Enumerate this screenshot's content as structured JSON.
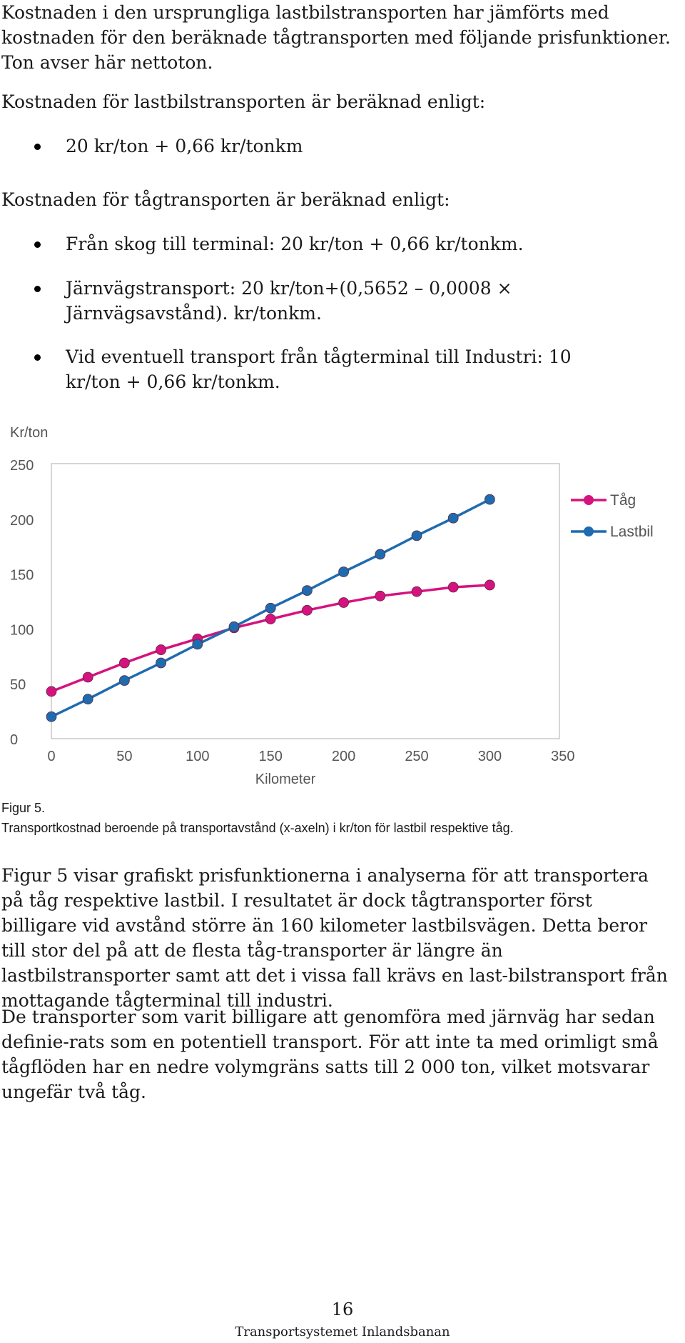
{
  "intro": "Kostnaden i den ursprungliga lastbilstransporten har jämförts med kostnaden för den beräknade tågtransporten med följande prisfunktioner. Ton avser här nettoton.",
  "truck_heading": "Kostnaden för lastbilstransporten är beräknad enligt:",
  "truck_items": [
    "20 kr/ton + 0,66 kr/tonkm"
  ],
  "train_heading": "Kostnaden för tågtransporten är beräknad enligt:",
  "train_items": [
    "Från skog till terminal: 20 kr/ton + 0,66 kr/tonkm.",
    "Järnvägstransport: 20 kr/ton+(0,5652 – 0,0008 × Järnvägsavstånd). kr/tonkm.",
    "Vid eventuell transport från tågterminal till Industri: 10 kr/ton + 0,66 kr/tonkm."
  ],
  "chart_data": {
    "type": "line",
    "ylabel": "Kr/ton",
    "xlabel": "Kilometer",
    "xlim": [
      0,
      350
    ],
    "ylim": [
      0,
      250
    ],
    "x_ticks": [
      0,
      50,
      100,
      150,
      200,
      250,
      300,
      350
    ],
    "y_ticks": [
      0,
      50,
      100,
      150,
      200,
      250
    ],
    "grid": false,
    "legend_position": "right",
    "x": [
      0,
      25,
      50,
      75,
      100,
      125,
      150,
      175,
      200,
      225,
      250,
      275,
      300
    ],
    "series": [
      {
        "name": "Tåg",
        "color": "#d6127f",
        "values": [
          43,
          56,
          69,
          81,
          91,
          101,
          109,
          117,
          124,
          130,
          134,
          138,
          140
        ]
      },
      {
        "name": "Lastbil",
        "color": "#1f6bb0",
        "values": [
          20,
          36,
          53,
          69,
          86,
          102,
          119,
          135,
          152,
          168,
          185,
          201,
          218
        ]
      }
    ]
  },
  "caption": {
    "label": "Figur 5.",
    "text": "Transportkostnad beroende på transportavstånd (x-axeln) i kr/ton för lastbil respektive tåg."
  },
  "body_paragraphs": [
    "Figur 5 visar grafiskt prisfunktionerna i analyserna för att transportera på tåg respektive lastbil. I resultatet är dock tågtransporter först billigare vid avstånd större än 160 kilometer lastbilsvägen. Detta beror till stor del på att de flesta tåg-transporter är längre än lastbilstransporter samt att det i vissa fall krävs en last-bilstransport från mottagande tågterminal till industri.",
    "De transporter som varit billigare att genomföra med järnväg har sedan definie-rats som en potentiell transport. För att inte ta med orimligt små tågflöden har en nedre volymgräns satts till 2 000 ton, vilket motsvarar ungefär två tåg."
  ],
  "footer": {
    "page_number": "16",
    "title": "Transportsystemet Inlandsbanan"
  }
}
